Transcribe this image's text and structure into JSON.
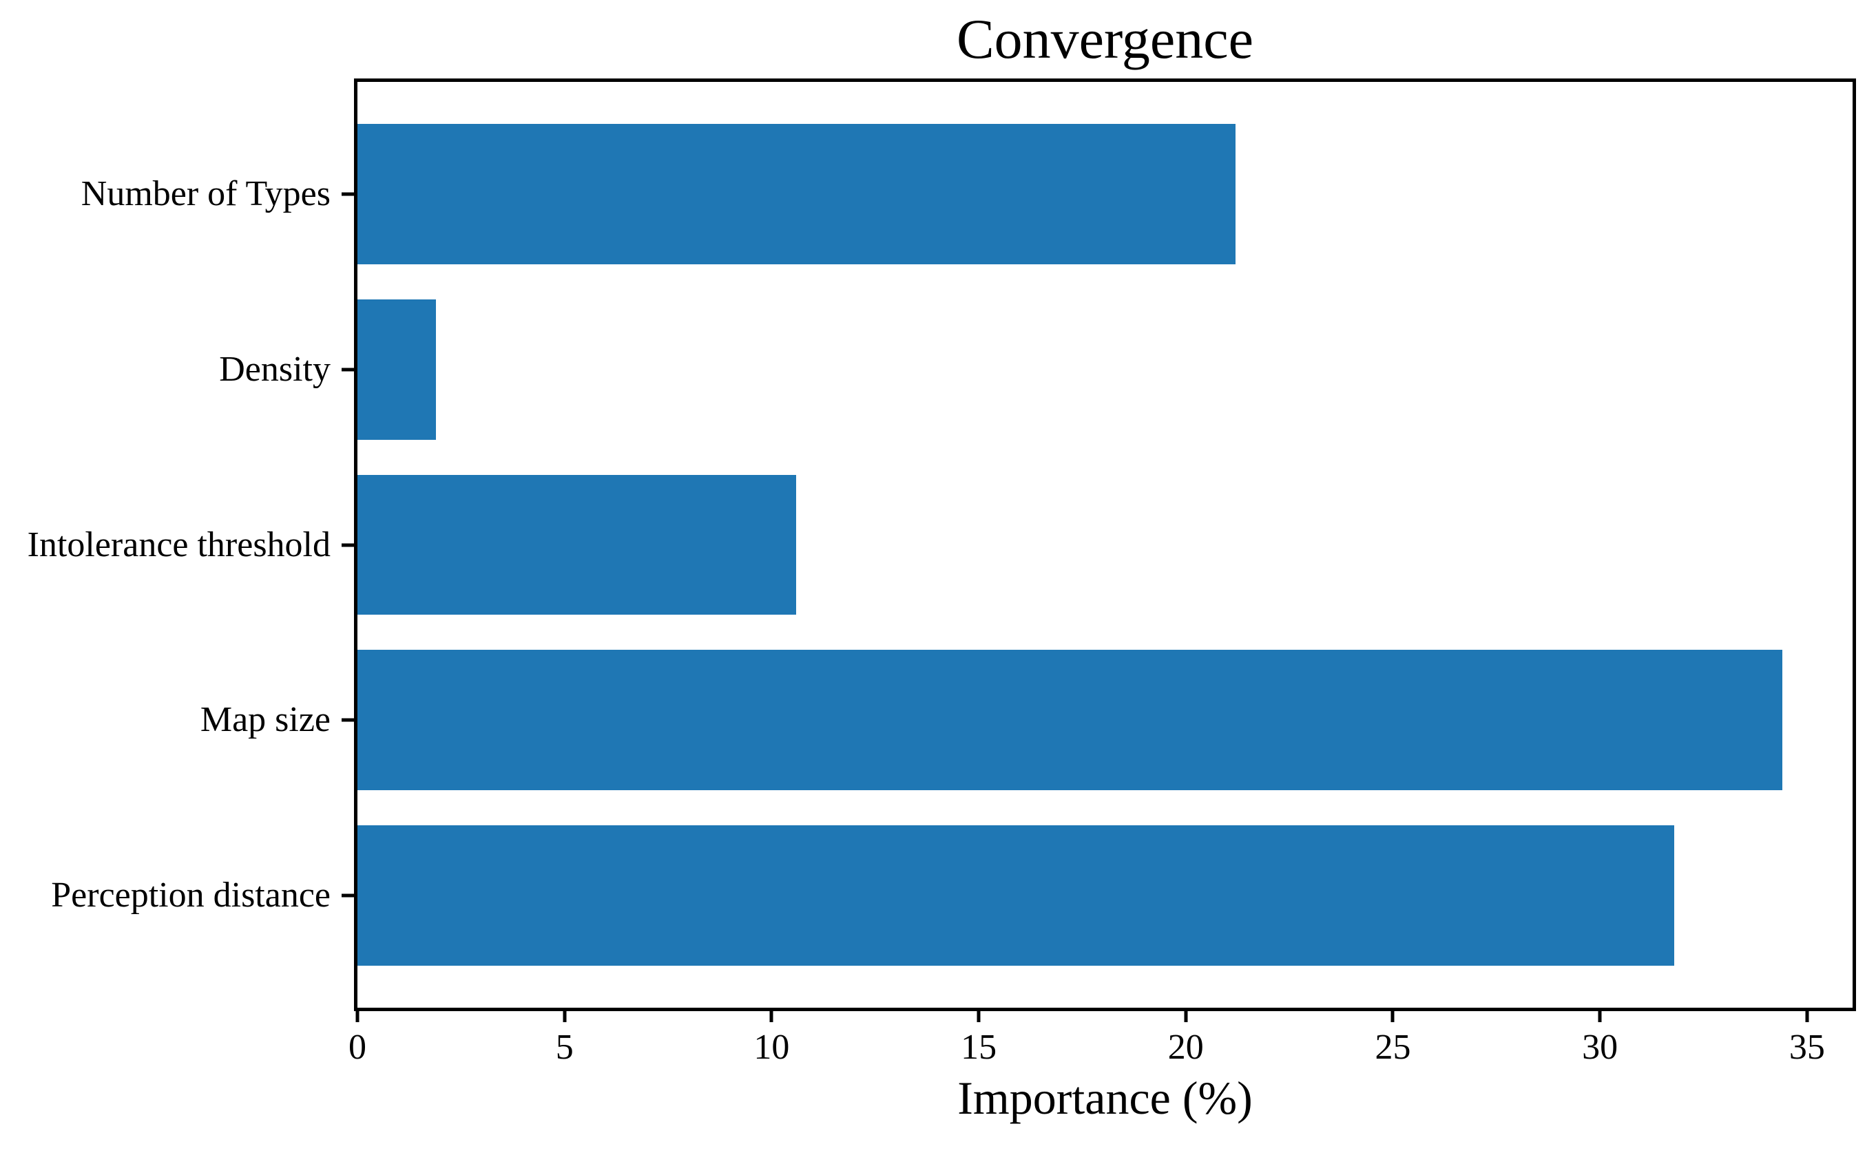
{
  "chart_data": {
    "type": "bar",
    "orientation": "horizontal",
    "title": "Convergence",
    "xlabel": "Importance (%)",
    "ylabel": "",
    "categories": [
      "Number of Types",
      "Density",
      "Intolerance threshold",
      "Map size",
      "Perception distance"
    ],
    "values": [
      21.2,
      1.9,
      10.6,
      34.4,
      31.8
    ],
    "xlim": [
      0,
      36.1
    ],
    "xticks": [
      0,
      5,
      10,
      15,
      20,
      25,
      30,
      35
    ],
    "grid": "off",
    "legend": "none",
    "bar_color": "#1f77b4",
    "axis_color": "#000000",
    "background_color": "#ffffff"
  }
}
